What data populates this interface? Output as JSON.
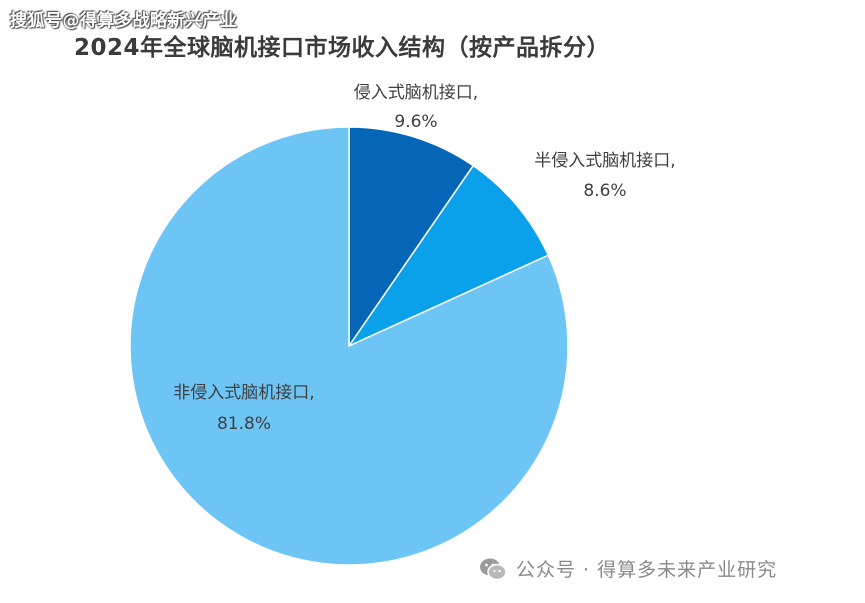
{
  "watermark_top": "搜狐号@得算多战略新兴产业",
  "watermark_bottom": {
    "icon": "wechat-icon",
    "text": "公众号 · 得算多未来产业研究"
  },
  "chart_data": {
    "type": "pie",
    "title": "2024年全球脑机接口市场收入结构（按产品拆分）",
    "slices": [
      {
        "name": "侵入式脑机接口,",
        "value": 9.6,
        "display": "9.6%",
        "color": "#0566b8"
      },
      {
        "name": "半侵入式脑机接口,",
        "value": 8.6,
        "display": "8.6%",
        "color": "#0aa1ea"
      },
      {
        "name": "非侵入式脑机接口,",
        "value": 81.8,
        "display": "81.8%",
        "color": "#6cc5f4"
      }
    ],
    "start_angle_deg": 0,
    "direction": "clockwise",
    "legend": "none"
  }
}
